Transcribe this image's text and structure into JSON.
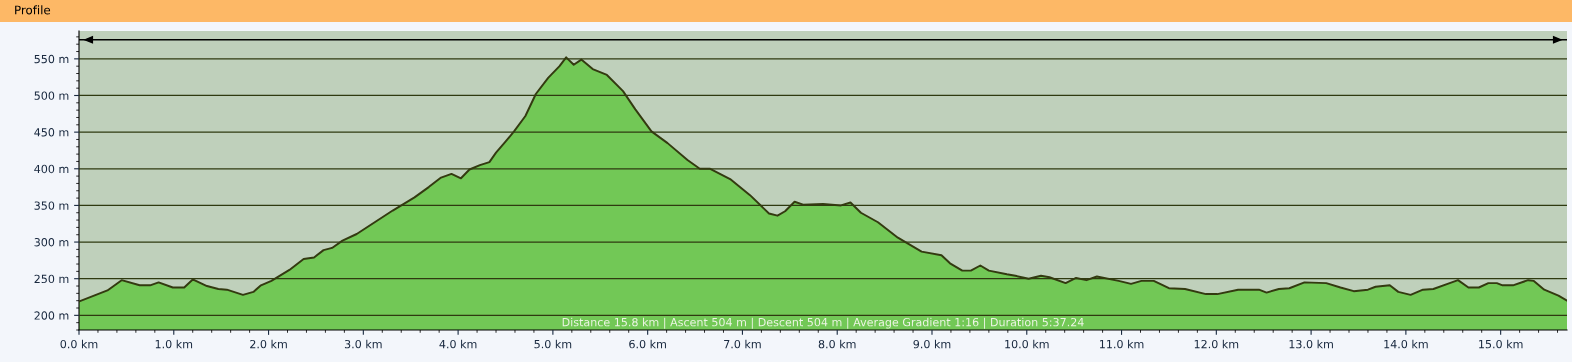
{
  "chart_data": {
    "type": "area",
    "title": "Profile",
    "x": [
      0,
      0.3,
      0.45,
      0.64,
      0.75,
      0.84,
      0.99,
      1.11,
      1.2,
      1.35,
      1.47,
      1.56,
      1.73,
      1.84,
      1.92,
      2.03,
      2.22,
      2.37,
      2.48,
      2.58,
      2.67,
      2.78,
      2.93,
      3.12,
      3.31,
      3.54,
      3.69,
      3.82,
      3.93,
      4.03,
      4.12,
      4.23,
      4.33,
      4.4,
      4.5,
      4.59,
      4.71,
      4.82,
      4.95,
      5.07,
      5.14,
      5.22,
      5.3,
      5.42,
      5.57,
      5.74,
      5.87,
      6.04,
      6.21,
      6.42,
      6.55,
      6.66,
      6.87,
      7.08,
      7.28,
      7.37,
      7.45,
      7.55,
      7.64,
      7.85,
      8.04,
      8.14,
      8.25,
      8.43,
      8.64,
      8.89,
      9.1,
      9.19,
      9.32,
      9.41,
      9.51,
      9.6,
      9.79,
      9.88,
      10.02,
      10.15,
      10.24,
      10.41,
      10.52,
      10.63,
      10.74,
      10.97,
      11.1,
      11.21,
      11.34,
      11.5,
      11.67,
      11.89,
      12.01,
      12.23,
      12.45,
      12.53,
      12.66,
      12.77,
      12.93,
      13.16,
      13.31,
      13.45,
      13.6,
      13.68,
      13.83,
      13.92,
      14.05,
      14.18,
      14.29,
      14.44,
      14.55,
      14.66,
      14.77,
      14.87,
      14.96,
      15.02,
      15.13,
      15.29,
      15.35,
      15.46,
      15.61,
      15.7
    ],
    "series": [
      {
        "color": "#72c856",
        "values": [
          219,
          234,
          248,
          241,
          241,
          245,
          238,
          238,
          249,
          240,
          236,
          235,
          228,
          232,
          241,
          247,
          262,
          277,
          279,
          289,
          292,
          302,
          311,
          327,
          343,
          361,
          375,
          388,
          393,
          387,
          399,
          405,
          409,
          422,
          437,
          451,
          472,
          502,
          524,
          540,
          552,
          542,
          549,
          536,
          528,
          506,
          481,
          451,
          435,
          412,
          400,
          400,
          386,
          364,
          339,
          336,
          342,
          355,
          351,
          352,
          350,
          354,
          340,
          327,
          306,
          287,
          282,
          271,
          261,
          261,
          268,
          261,
          256,
          254,
          250,
          254,
          252,
          244,
          251,
          248,
          253,
          247,
          243,
          247,
          247,
          237,
          236,
          229,
          229,
          235,
          235,
          231,
          236,
          237,
          245,
          244,
          238,
          233,
          235,
          239,
          241,
          232,
          228,
          235,
          236,
          243,
          248,
          238,
          238,
          244,
          244,
          241,
          241,
          248,
          247,
          235,
          227,
          220
        ]
      }
    ],
    "xlim": [
      0,
      15.7
    ],
    "ylim": [
      180,
      588
    ],
    "xticks": [
      {
        "value": 0,
        "label": "0.0 km"
      },
      {
        "value": 1,
        "label": "1.0 km"
      },
      {
        "value": 2,
        "label": "2.0 km"
      },
      {
        "value": 3,
        "label": "3.0 km"
      },
      {
        "value": 4,
        "label": "4.0 km"
      },
      {
        "value": 5,
        "label": "5.0 km"
      },
      {
        "value": 6,
        "label": "6.0 km"
      },
      {
        "value": 7,
        "label": "7.0 km"
      },
      {
        "value": 8,
        "label": "8.0 km"
      },
      {
        "value": 9,
        "label": "9.0 km"
      },
      {
        "value": 10,
        "label": "10.0 km"
      },
      {
        "value": 11,
        "label": "11.0 km"
      },
      {
        "value": 12,
        "label": "12.0 km"
      },
      {
        "value": 13,
        "label": "13.0 km"
      },
      {
        "value": 14,
        "label": "14.0 km"
      },
      {
        "value": 15,
        "label": "15.0 km"
      }
    ],
    "yticks": [
      {
        "value": 200,
        "label": "200 m"
      },
      {
        "value": 250,
        "label": "250 m"
      },
      {
        "value": 300,
        "label": "300 m"
      },
      {
        "value": 350,
        "label": "350 m"
      },
      {
        "value": 400,
        "label": "400 m"
      },
      {
        "value": 450,
        "label": "450 m"
      },
      {
        "value": 500,
        "label": "500 m"
      },
      {
        "value": 550,
        "label": "550 m"
      }
    ],
    "grid": "y",
    "ref_lines": [
      {
        "axis": "y",
        "value": 576,
        "color": "#000000"
      }
    ],
    "annotations": [
      "Distance 15.8 km | Ascent 504 m | Descent 504 m | Average Gradient 1:16 | Duration 5:37.24"
    ]
  }
}
